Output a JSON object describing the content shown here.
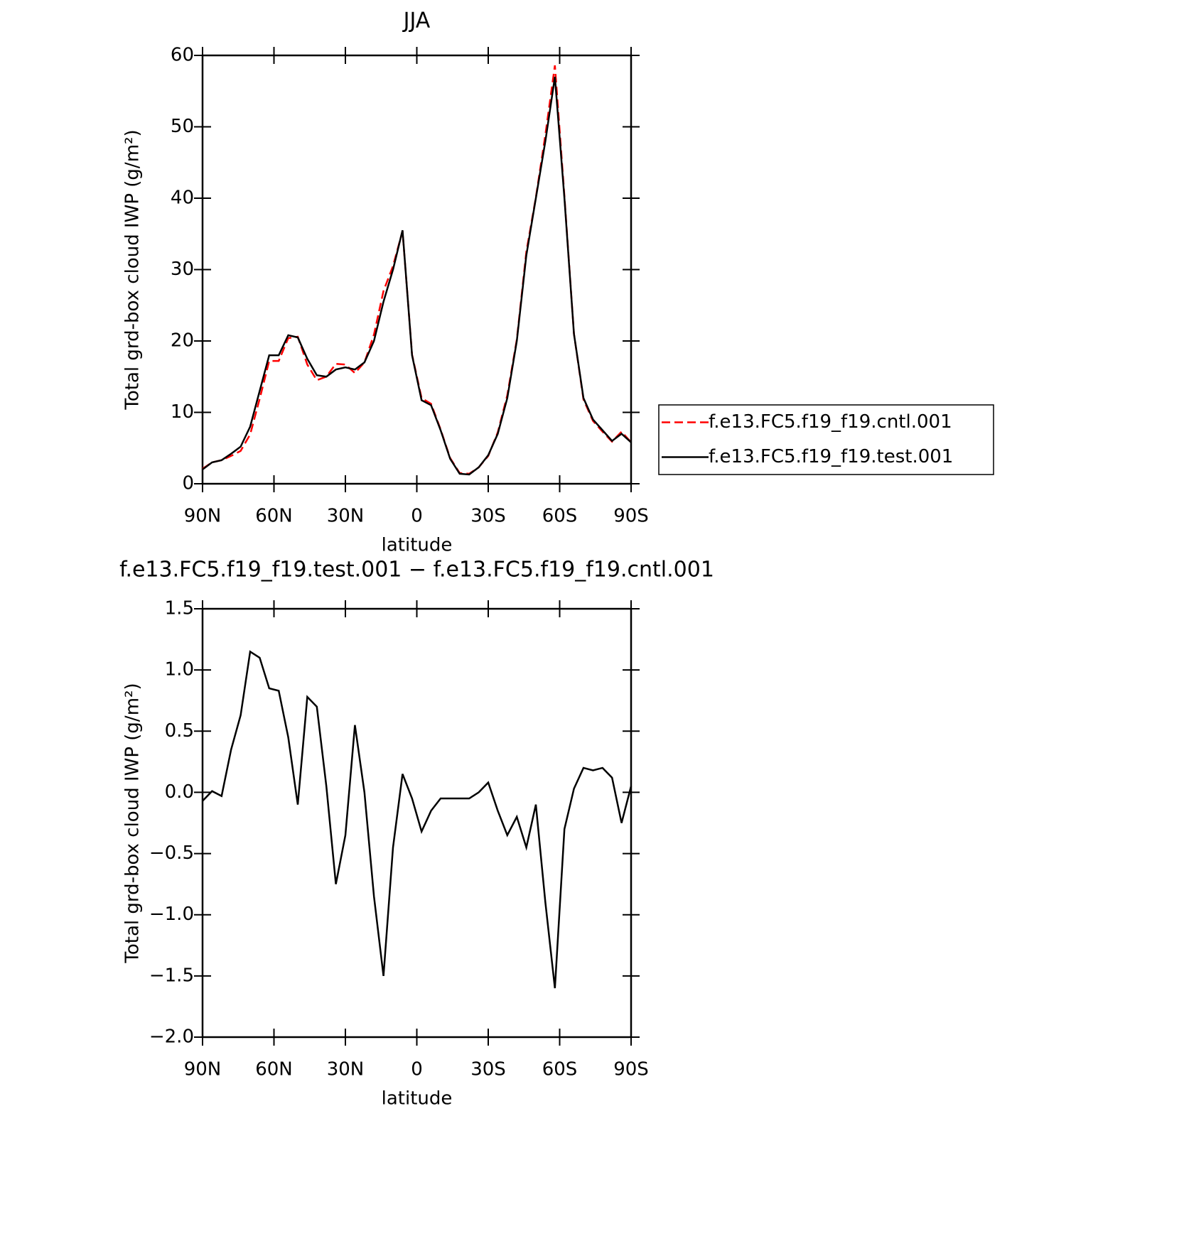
{
  "chart_data": [
    {
      "type": "line",
      "title": "JJA",
      "xlabel": "latitude",
      "ylabel": "Total grd-box cloud IWP (g/m²)",
      "x": [
        90,
        86,
        82,
        78,
        74,
        70,
        66,
        62,
        58,
        54,
        50,
        46,
        42,
        38,
        34,
        30,
        26,
        22,
        18,
        14,
        10,
        6,
        2,
        -2,
        -6,
        -10,
        -14,
        -18,
        -22,
        -26,
        -30,
        -34,
        -38,
        -42,
        -46,
        -50,
        -54,
        -58,
        -62,
        -66,
        -70,
        -74,
        -78,
        -82,
        -86,
        -90
      ],
      "xlim": [
        90,
        -90
      ],
      "xticks": [
        {
          "value": 90,
          "label": "90N"
        },
        {
          "value": 60,
          "label": "60N"
        },
        {
          "value": 30,
          "label": "30N"
        },
        0,
        {
          "value": -30,
          "label": "30S"
        },
        {
          "value": -60,
          "label": "60S"
        },
        {
          "value": -90,
          "label": "90S"
        }
      ],
      "ylim": [
        0,
        60
      ],
      "yticks": [
        0,
        10,
        20,
        30,
        40,
        50,
        60
      ],
      "legend": "right",
      "series": [
        {
          "name": "f.e13.FC5.f19_f19.cntl.001",
          "color": "#ff0000",
          "dash": "dashed",
          "values": [
            2.1,
            3.0,
            3.3,
            3.9,
            4.6,
            6.9,
            11.9,
            17.2,
            17.2,
            20.4,
            20.6,
            16.7,
            14.5,
            15.0,
            16.8,
            16.7,
            15.5,
            17.0,
            20.9,
            27.0,
            30.5,
            35.4,
            18.1,
            12.0,
            11.2,
            7.6,
            3.6,
            1.5,
            1.4,
            2.3,
            3.9,
            7.2,
            12.4,
            20.2,
            32.5,
            40.1,
            48.9,
            58.6,
            40.3,
            21.0,
            11.8,
            8.8,
            7.3,
            5.9,
            7.3,
            5.8
          ]
        },
        {
          "name": "f.e13.FC5.f19_f19.test.001",
          "color": "#000000",
          "dash": "solid",
          "values": [
            2.0,
            3.0,
            3.3,
            4.2,
            5.2,
            8.0,
            13.0,
            18.0,
            18.0,
            20.8,
            20.5,
            17.5,
            15.2,
            15.0,
            16.0,
            16.3,
            16.0,
            17.0,
            20.0,
            25.5,
            30.0,
            35.5,
            18.0,
            11.7,
            11.0,
            7.5,
            3.5,
            1.4,
            1.3,
            2.3,
            4.0,
            7.0,
            12.0,
            20.0,
            32.0,
            40.0,
            48.0,
            57.0,
            40.0,
            21.0,
            12.0,
            9.0,
            7.5,
            6.0,
            7.0,
            5.8
          ]
        }
      ]
    },
    {
      "type": "line",
      "title": "f.e13.FC5.f19_f19.test.001 − f.e13.FC5.f19_f19.cntl.001",
      "xlabel": "latitude",
      "ylabel": "Total grd-box cloud IWP (g/m²)",
      "x": [
        90,
        86,
        82,
        78,
        74,
        70,
        66,
        62,
        58,
        54,
        50,
        46,
        42,
        38,
        34,
        30,
        26,
        22,
        18,
        14,
        10,
        6,
        2,
        -2,
        -6,
        -10,
        -14,
        -18,
        -22,
        -26,
        -30,
        -34,
        -38,
        -42,
        -46,
        -50,
        -54,
        -58,
        -62,
        -66,
        -70,
        -74,
        -78,
        -82,
        -86,
        -90
      ],
      "xlim": [
        90,
        -90
      ],
      "xticks": [
        {
          "value": 90,
          "label": "90N"
        },
        {
          "value": 60,
          "label": "60N"
        },
        {
          "value": 30,
          "label": "30N"
        },
        0,
        {
          "value": -30,
          "label": "30S"
        },
        {
          "value": -60,
          "label": "60S"
        },
        {
          "value": -90,
          "label": "90S"
        }
      ],
      "ylim": [
        -2.0,
        1.5
      ],
      "yticks": [
        {
          "value": -2.0,
          "label": "−2.0"
        },
        {
          "value": -1.5,
          "label": "−1.5"
        },
        {
          "value": -1.0,
          "label": "−1.0"
        },
        {
          "value": -0.5,
          "label": "−0.5"
        },
        {
          "value": 0.0,
          "label": "0.0"
        },
        0.5,
        {
          "value": 1.0,
          "label": "1.0"
        },
        1.5
      ],
      "series": [
        {
          "color": "#000000",
          "dash": "solid",
          "values": [
            -0.07,
            0.01,
            -0.03,
            0.35,
            0.63,
            1.15,
            1.1,
            0.85,
            0.83,
            0.45,
            -0.1,
            0.78,
            0.7,
            0.05,
            -0.75,
            -0.35,
            0.55,
            0.0,
            -0.85,
            -1.5,
            -0.45,
            0.15,
            -0.05,
            -0.32,
            -0.15,
            -0.05,
            -0.05,
            -0.05,
            -0.05,
            0.0,
            0.08,
            -0.15,
            -0.35,
            -0.2,
            -0.45,
            -0.1,
            -0.9,
            -1.6,
            -0.3,
            0.03,
            0.2,
            0.18,
            0.2,
            0.12,
            -0.25,
            0.05
          ]
        }
      ]
    }
  ]
}
